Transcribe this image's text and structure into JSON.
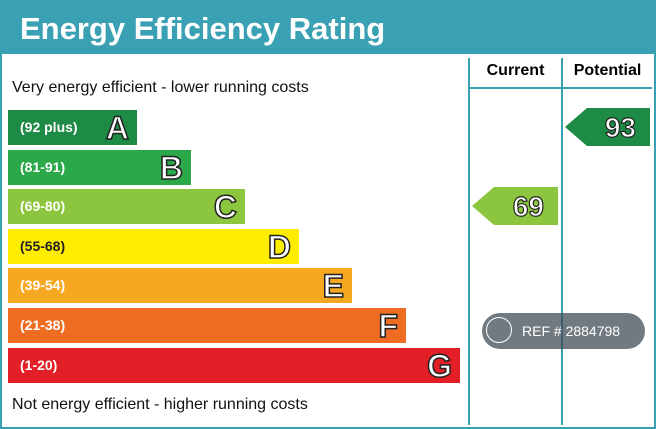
{
  "header": {
    "title": "Energy Efficiency Rating"
  },
  "columns": {
    "current": "Current",
    "potential": "Potential"
  },
  "top_note": "Very energy efficient - lower running costs",
  "bottom_note": "Not energy efficient - higher running costs",
  "bands": [
    {
      "range": "(92 plus)",
      "letter": "A"
    },
    {
      "range": "(81-91)",
      "letter": "B"
    },
    {
      "range": "(69-80)",
      "letter": "C"
    },
    {
      "range": "(55-68)",
      "letter": "D"
    },
    {
      "range": "(39-54)",
      "letter": "E"
    },
    {
      "range": "(21-38)",
      "letter": "F"
    },
    {
      "range": "(1-20)",
      "letter": "G"
    }
  ],
  "current": 69,
  "potential": 93,
  "watermark": "REF # 2884798"
}
